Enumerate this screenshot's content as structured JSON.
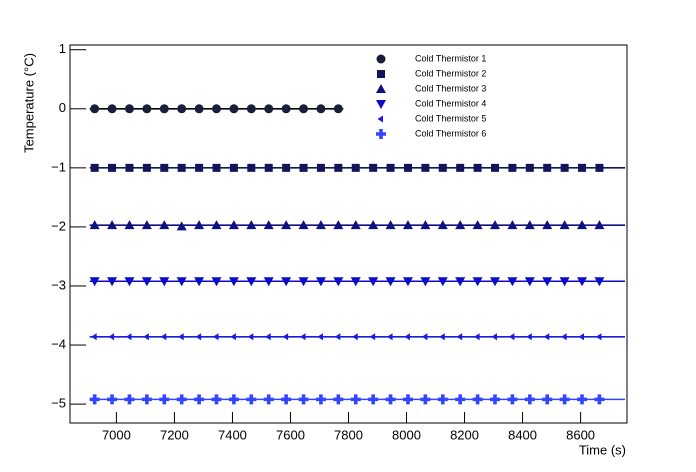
{
  "chart_data": {
    "type": "scatter",
    "xlabel": "Time (s)",
    "ylabel": "Temperature (°C)",
    "xlim": [
      6840,
      8760
    ],
    "ylim": [
      -5.32,
      1.08
    ],
    "xticks": [
      7000,
      7200,
      7400,
      7600,
      7800,
      8000,
      8200,
      8400,
      8600
    ],
    "yticks": [
      {
        "value": -5,
        "label": "−5"
      },
      {
        "value": -4,
        "label": "−4"
      },
      {
        "value": -3,
        "label": "−3"
      },
      {
        "value": -2,
        "label": "−2"
      },
      {
        "value": -1,
        "label": "−1"
      },
      0,
      1
    ],
    "series": [
      {
        "name": "Cold Thermistor 1",
        "color": "#1c1c3c",
        "marker": "circle",
        "x": [
          6925,
          6985,
          7045,
          7105,
          7165,
          7225,
          7285,
          7345,
          7405,
          7465,
          7525,
          7585,
          7645,
          7705,
          7765
        ],
        "values": [
          0,
          0,
          0,
          0,
          0,
          0,
          0,
          0,
          0,
          0,
          0,
          0,
          0,
          0,
          0
        ]
      },
      {
        "name": "Cold Thermistor 2",
        "color": "#14145a",
        "marker": "square",
        "x": [
          6925,
          6985,
          7045,
          7105,
          7165,
          7225,
          7285,
          7345,
          7405,
          7465,
          7525,
          7585,
          7645,
          7705,
          7765,
          7825,
          7885,
          7945,
          8005,
          8065,
          8125,
          8185,
          8245,
          8305,
          8365,
          8425,
          8485,
          8545,
          8605,
          8665
        ],
        "values": [
          -1,
          -1,
          -1,
          -1,
          -1,
          -1,
          -1,
          -1,
          -1,
          -1,
          -1,
          -1,
          -1,
          -1,
          -1,
          -1,
          -1,
          -1,
          -1,
          -1,
          -1,
          -1,
          -1,
          -1,
          -1,
          -1,
          -1,
          -1,
          -1,
          -1
        ]
      },
      {
        "name": "Cold Thermistor 3",
        "color": "#101080",
        "marker": "triangle-up",
        "x": [
          6925,
          6985,
          7045,
          7105,
          7165,
          7225,
          7285,
          7345,
          7405,
          7465,
          7525,
          7585,
          7645,
          7705,
          7765,
          7825,
          7885,
          7945,
          8005,
          8065,
          8125,
          8185,
          8245,
          8305,
          8365,
          8425,
          8485,
          8545,
          8605,
          8665
        ],
        "values": [
          -1.97,
          -1.97,
          -1.97,
          -1.97,
          -1.97,
          -1.99,
          -1.97,
          -1.97,
          -1.97,
          -1.97,
          -1.97,
          -1.97,
          -1.97,
          -1.97,
          -1.97,
          -1.97,
          -1.97,
          -1.97,
          -1.97,
          -1.97,
          -1.97,
          -1.97,
          -1.97,
          -1.97,
          -1.97,
          -1.97,
          -1.97,
          -1.97,
          -1.97,
          -1.97
        ]
      },
      {
        "name": "Cold Thermistor 4",
        "color": "#0c0cc8",
        "marker": "triangle-down",
        "x": [
          6925,
          6985,
          7045,
          7105,
          7165,
          7225,
          7285,
          7345,
          7405,
          7465,
          7525,
          7585,
          7645,
          7705,
          7765,
          7825,
          7885,
          7945,
          8005,
          8065,
          8125,
          8185,
          8245,
          8305,
          8365,
          8425,
          8485,
          8545,
          8605,
          8665
        ],
        "values": [
          -2.92,
          -2.92,
          -2.92,
          -2.92,
          -2.92,
          -2.92,
          -2.92,
          -2.92,
          -2.92,
          -2.92,
          -2.92,
          -2.92,
          -2.92,
          -2.92,
          -2.92,
          -2.92,
          -2.92,
          -2.92,
          -2.92,
          -2.92,
          -2.92,
          -2.92,
          -2.92,
          -2.92,
          -2.92,
          -2.92,
          -2.92,
          -2.92,
          -2.92,
          -2.92
        ]
      },
      {
        "name": "Cold Thermistor 5",
        "color": "#1a1ae0",
        "marker": "triangle-left",
        "x": [
          6925,
          6985,
          7045,
          7105,
          7165,
          7225,
          7285,
          7345,
          7405,
          7465,
          7525,
          7585,
          7645,
          7705,
          7765,
          7825,
          7885,
          7945,
          8005,
          8065,
          8125,
          8185,
          8245,
          8305,
          8365,
          8425,
          8485,
          8545,
          8605,
          8665
        ],
        "values": [
          -3.86,
          -3.86,
          -3.86,
          -3.86,
          -3.86,
          -3.86,
          -3.86,
          -3.86,
          -3.86,
          -3.86,
          -3.86,
          -3.86,
          -3.86,
          -3.86,
          -3.86,
          -3.86,
          -3.86,
          -3.86,
          -3.86,
          -3.86,
          -3.86,
          -3.86,
          -3.86,
          -3.86,
          -3.86,
          -3.86,
          -3.86,
          -3.86,
          -3.86,
          -3.86
        ]
      },
      {
        "name": "Cold Thermistor 6",
        "color": "#3344ff",
        "marker": "plus",
        "x": [
          6925,
          6985,
          7045,
          7105,
          7165,
          7225,
          7285,
          7345,
          7405,
          7465,
          7525,
          7585,
          7645,
          7705,
          7765,
          7825,
          7885,
          7945,
          8005,
          8065,
          8125,
          8185,
          8245,
          8305,
          8365,
          8425,
          8485,
          8545,
          8605,
          8665
        ],
        "values": [
          -4.92,
          -4.92,
          -4.92,
          -4.92,
          -4.92,
          -4.92,
          -4.92,
          -4.92,
          -4.92,
          -4.92,
          -4.92,
          -4.92,
          -4.92,
          -4.92,
          -4.92,
          -4.92,
          -4.92,
          -4.92,
          -4.92,
          -4.92,
          -4.92,
          -4.92,
          -4.92,
          -4.92,
          -4.92,
          -4.92,
          -4.92,
          -4.92,
          -4.92,
          -4.92
        ]
      }
    ],
    "legend": "top-center"
  }
}
